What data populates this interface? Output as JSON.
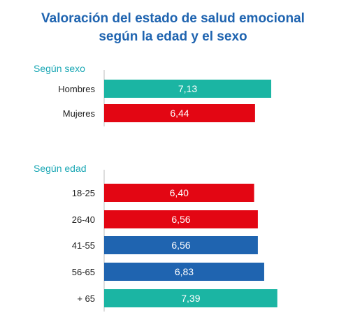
{
  "chart_data": {
    "type": "bar",
    "orientation": "horizontal",
    "title": "Valoración del estado de salud emocional",
    "subtitle": "según la edad y el sexo",
    "xlim": [
      0,
      8.8
    ],
    "groups": [
      {
        "label": "Según sexo",
        "categories": [
          "Hombres",
          "Mujeres"
        ],
        "values": [
          7.13,
          6.44
        ],
        "value_labels": [
          "7,13",
          "6,44"
        ],
        "colors": [
          "#1bb5a3",
          "#e30613"
        ]
      },
      {
        "label": "Según edad",
        "categories": [
          "18-25",
          "26-40",
          "41-55",
          "56-65",
          "+ 65"
        ],
        "values": [
          6.4,
          6.56,
          6.56,
          6.83,
          7.39
        ],
        "value_labels": [
          "6,40",
          "6,56",
          "6,56",
          "6,83",
          "7,39"
        ],
        "colors": [
          "#e30613",
          "#e30613",
          "#1f64b0",
          "#1f64b0",
          "#1bb5a3"
        ]
      }
    ]
  }
}
